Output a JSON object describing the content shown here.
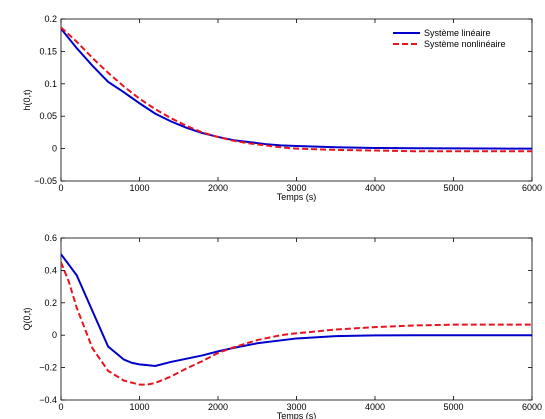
{
  "chart_data": [
    {
      "type": "line",
      "title": "",
      "xlabel": "Temps (s)",
      "ylabel": "h(0,t)",
      "xlim": [
        0,
        6000
      ],
      "ylim": [
        -0.05,
        0.2
      ],
      "xticks": [
        0,
        1000,
        2000,
        3000,
        4000,
        5000,
        6000
      ],
      "yticks": [
        -0.05,
        0,
        0.05,
        0.1,
        0.15,
        0.2
      ],
      "yticklabels": [
        "−0.05",
        "0",
        "0.05",
        "0.1",
        "0.15",
        "0.2"
      ],
      "grid": false,
      "legend": {
        "placement": "top-right",
        "entries": [
          "Système linéaire",
          "Système nonlinéaire"
        ]
      },
      "series": [
        {
          "name": "Système linéaire",
          "color": "#0000cc",
          "style": "solid",
          "x": [
            0,
            200,
            400,
            600,
            800,
            1000,
            1200,
            1400,
            1600,
            1800,
            2000,
            2200,
            2400,
            2600,
            2800,
            3000,
            3500,
            4000,
            4500,
            5000,
            5500,
            6000
          ],
          "y": [
            0.185,
            0.155,
            0.128,
            0.103,
            0.087,
            0.07,
            0.054,
            0.042,
            0.032,
            0.024,
            0.018,
            0.013,
            0.01,
            0.007,
            0.005,
            0.004,
            0.002,
            0.001,
            0.0005,
            0.0003,
            0.0001,
            0.0
          ]
        },
        {
          "name": "Système nonlinéaire",
          "color": "#e8141e",
          "style": "dashed",
          "x": [
            0,
            200,
            400,
            600,
            800,
            1000,
            1200,
            1400,
            1600,
            1800,
            2000,
            2200,
            2400,
            2600,
            2800,
            3000,
            3500,
            4000,
            4500,
            5000,
            5500,
            6000
          ],
          "y": [
            0.187,
            0.165,
            0.14,
            0.117,
            0.096,
            0.077,
            0.061,
            0.047,
            0.035,
            0.025,
            0.018,
            0.012,
            0.008,
            0.005,
            0.002,
            0.0,
            -0.002,
            -0.003,
            -0.004,
            -0.004,
            -0.004,
            -0.004
          ]
        }
      ]
    },
    {
      "type": "line",
      "title": "",
      "xlabel": "Temps (s)",
      "ylabel": "Q(0,t)",
      "xlim": [
        0,
        6000
      ],
      "ylim": [
        -0.4,
        0.6
      ],
      "xticks": [
        0,
        1000,
        2000,
        3000,
        4000,
        5000,
        6000
      ],
      "yticks": [
        -0.4,
        -0.2,
        0,
        0.2,
        0.4,
        0.6
      ],
      "yticklabels": [
        "−0.4",
        "−0.2",
        "0",
        "0.2",
        "0.4",
        "0.6"
      ],
      "grid": false,
      "series": [
        {
          "name": "Système linéaire",
          "color": "#0000cc",
          "style": "solid",
          "x": [
            0,
            200,
            400,
            600,
            800,
            900,
            1000,
            1100,
            1200,
            1400,
            1600,
            1800,
            2000,
            2200,
            2500,
            3000,
            3500,
            4000,
            4500,
            5000,
            5500,
            6000
          ],
          "y": [
            0.5,
            0.37,
            0.15,
            -0.07,
            -0.15,
            -0.17,
            -0.18,
            -0.185,
            -0.19,
            -0.165,
            -0.145,
            -0.125,
            -0.1,
            -0.078,
            -0.05,
            -0.02,
            -0.006,
            -0.001,
            0.0,
            0.0,
            0.0,
            0.0
          ]
        },
        {
          "name": "Système nonlinéaire",
          "color": "#e8141e",
          "style": "dashed",
          "x": [
            0,
            100,
            200,
            400,
            600,
            800,
            1000,
            1100,
            1200,
            1400,
            1600,
            1800,
            2000,
            2200,
            2500,
            2800,
            3000,
            3500,
            4000,
            4500,
            5000,
            5500,
            6000
          ],
          "y": [
            0.45,
            0.33,
            0.17,
            -0.08,
            -0.22,
            -0.28,
            -0.305,
            -0.305,
            -0.295,
            -0.255,
            -0.205,
            -0.16,
            -0.11,
            -0.075,
            -0.03,
            0.0,
            0.012,
            0.035,
            0.05,
            0.06,
            0.065,
            0.065,
            0.065
          ]
        }
      ]
    }
  ]
}
